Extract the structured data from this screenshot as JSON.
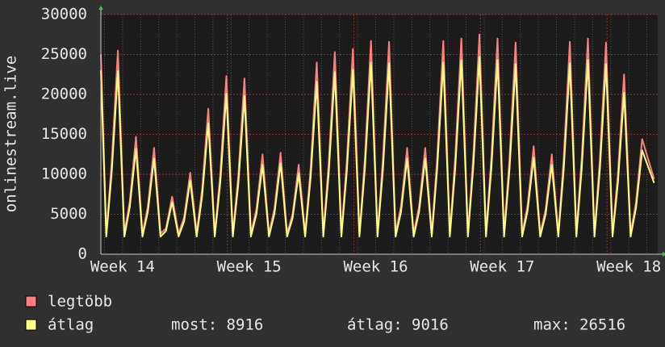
{
  "chart_data": {
    "type": "line",
    "y_label": "onlinestream.live",
    "xlim": [
      0,
      30.8
    ],
    "xticks": [
      {
        "value": 1.2,
        "label": "Week 14"
      },
      {
        "value": 8.2,
        "label": "Week 15"
      },
      {
        "value": 15.2,
        "label": "Week 16"
      },
      {
        "value": 22.2,
        "label": "Week 17"
      },
      {
        "value": 29.2,
        "label": "Week 18"
      }
    ],
    "ylim": [
      0,
      30000
    ],
    "yticks": [
      0,
      5000,
      10000,
      15000,
      20000,
      25000,
      30000
    ],
    "grid": true,
    "x": [
      0,
      0.3,
      0.6,
      0.94,
      1.3,
      1.6,
      1.94,
      2.3,
      2.6,
      2.94,
      3.3,
      3.6,
      3.94,
      4.3,
      4.6,
      4.94,
      5.3,
      5.6,
      5.94,
      6.3,
      6.6,
      6.94,
      7.3,
      7.6,
      7.94,
      8.3,
      8.6,
      8.94,
      9.3,
      9.6,
      9.94,
      10.3,
      10.6,
      10.94,
      11.3,
      11.6,
      11.94,
      12.3,
      12.6,
      12.94,
      13.3,
      13.6,
      13.94,
      14.3,
      14.6,
      14.94,
      15.3,
      15.6,
      15.94,
      16.3,
      16.6,
      16.94,
      17.3,
      17.6,
      17.94,
      18.3,
      18.6,
      18.94,
      19.3,
      19.6,
      19.94,
      20.3,
      20.6,
      20.94,
      21.3,
      21.6,
      21.94,
      22.3,
      22.6,
      22.94,
      23.3,
      23.6,
      23.94,
      24.3,
      24.6,
      24.94,
      25.3,
      25.6,
      25.94,
      26.3,
      26.6,
      26.94,
      27.3,
      27.6,
      27.94,
      28.3,
      28.6,
      28.94,
      29.3,
      29.6,
      29.94,
      30.6
    ],
    "series": [
      {
        "name": "legtöbb",
        "color": "#ff7f7f",
        "values": [
          25000,
          2600,
          11500,
          25500,
          2600,
          6600,
          14700,
          2600,
          6000,
          13300,
          2600,
          3200,
          7200,
          2600,
          4600,
          10200,
          2600,
          8200,
          18200,
          2600,
          10000,
          22300,
          2600,
          9900,
          22000,
          2600,
          5600,
          12500,
          2600,
          5700,
          12700,
          2600,
          5000,
          11200,
          2600,
          10800,
          24000,
          2600,
          11400,
          25300,
          2600,
          11600,
          25700,
          2600,
          12000,
          26700,
          2600,
          12000,
          26600,
          2600,
          6000,
          13300,
          2600,
          6000,
          13300,
          2600,
          12000,
          26700,
          2600,
          12200,
          27000,
          2600,
          12400,
          27500,
          2600,
          12200,
          27000,
          2600,
          11900,
          26500,
          2600,
          6100,
          13500,
          2600,
          5600,
          12500,
          2600,
          12000,
          26600,
          2600,
          12200,
          27000,
          2600,
          11900,
          26500,
          2600,
          10100,
          22500,
          2600,
          6500,
          14400,
          9400
        ]
      },
      {
        "name": "átlag",
        "color": "#ffff80",
        "values": [
          23000,
          2200,
          10200,
          22900,
          2200,
          5900,
          13200,
          2200,
          5300,
          12000,
          2200,
          2900,
          6500,
          2200,
          4100,
          9200,
          2200,
          7300,
          16400,
          2200,
          8900,
          20100,
          2200,
          8800,
          19800,
          2200,
          5000,
          11200,
          2200,
          5100,
          11400,
          2200,
          4500,
          10100,
          2200,
          9600,
          21600,
          2200,
          10100,
          22800,
          2200,
          10300,
          23100,
          2200,
          10700,
          24000,
          2200,
          10600,
          23900,
          2200,
          5300,
          12000,
          2200,
          5300,
          12000,
          2200,
          10700,
          24000,
          2200,
          10800,
          24300,
          2200,
          11000,
          24700,
          2200,
          10800,
          24300,
          2200,
          10600,
          23800,
          2200,
          5400,
          12100,
          2200,
          5000,
          11200,
          2200,
          10600,
          23900,
          2200,
          10800,
          24300,
          2200,
          10600,
          23800,
          2200,
          9000,
          20200,
          2200,
          5800,
          13000,
          8916
        ]
      }
    ],
    "stats": [
      {
        "label": "most:",
        "value": 8916
      },
      {
        "label": "átlag:",
        "value": 9016
      },
      {
        "label": "max:",
        "value": 26516
      }
    ]
  }
}
